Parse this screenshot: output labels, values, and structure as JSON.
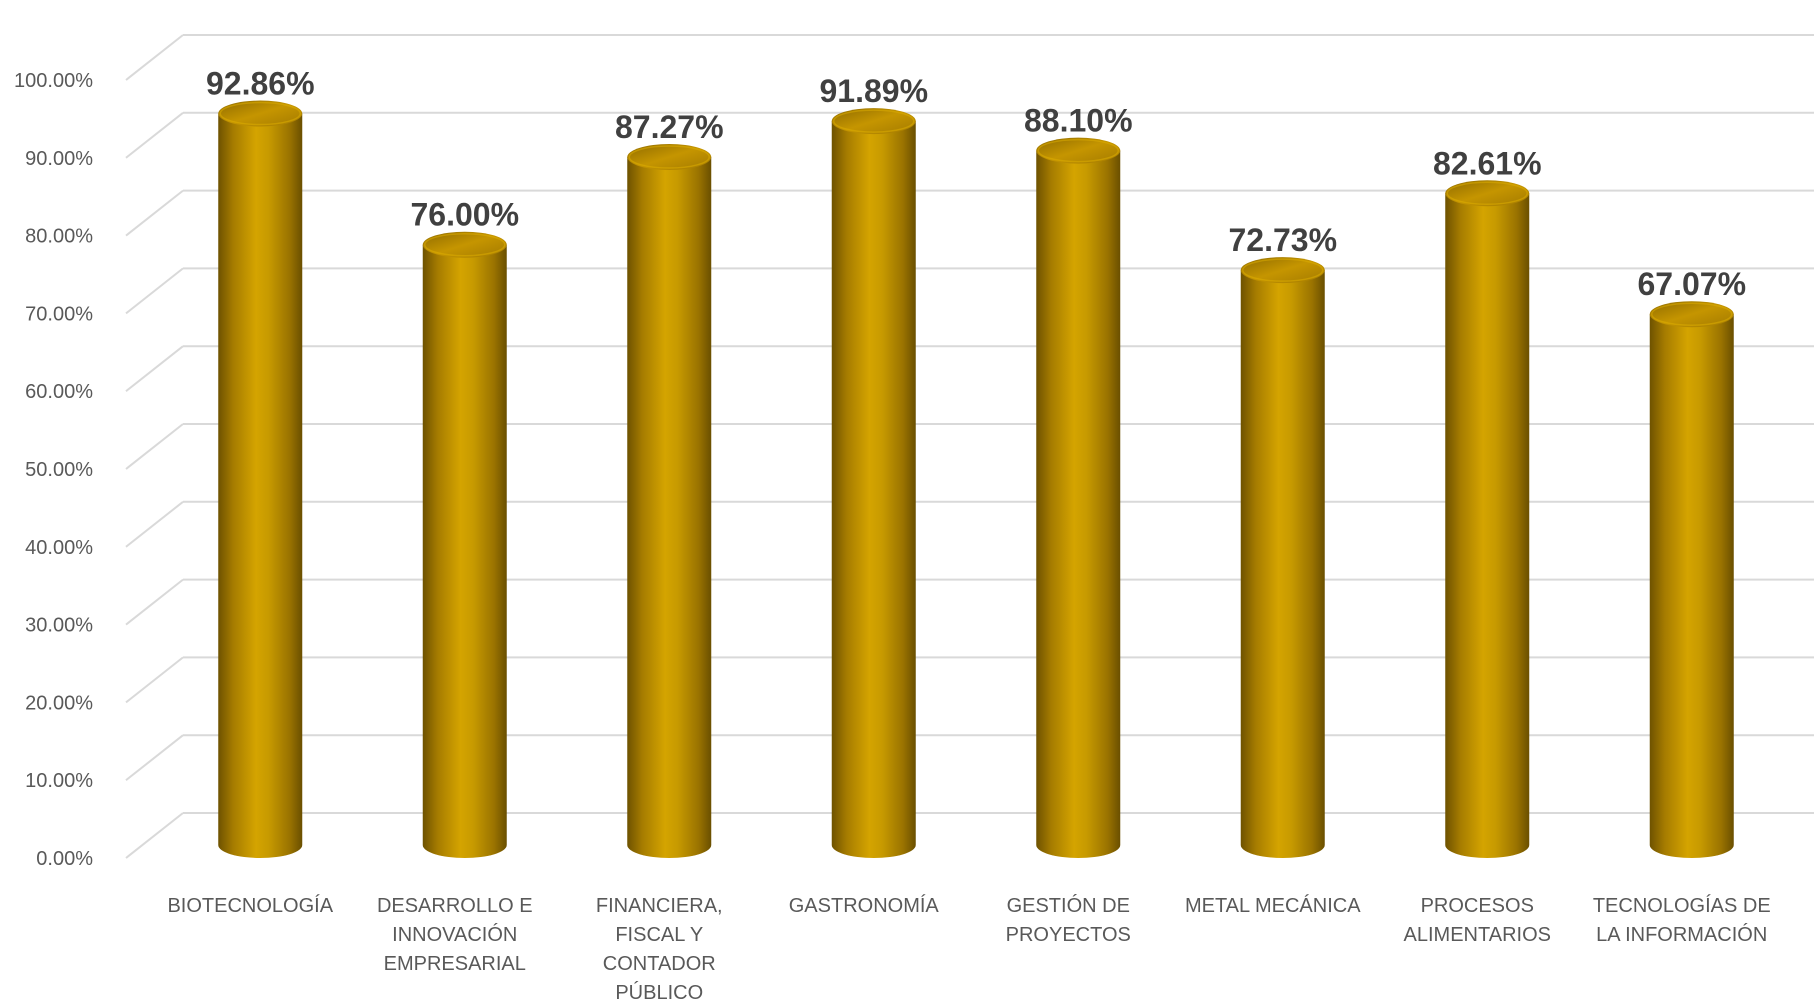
{
  "chart_data": {
    "type": "bar",
    "categories": [
      [
        "BIOTECNOLOGÍA"
      ],
      [
        "DESARROLLO E",
        "INNOVACIÓN",
        "EMPRESARIAL"
      ],
      [
        "FINANCIERA,",
        "FISCAL Y",
        "CONTADOR",
        "PÚBLICO"
      ],
      [
        "GASTRONOMÍA"
      ],
      [
        "GESTIÓN DE",
        "PROYECTOS"
      ],
      [
        "METAL MECÁNICA"
      ],
      [
        "PROCESOS",
        "ALIMENTARIOS"
      ],
      [
        "TECNOLOGÍAS DE",
        "LA INFORMACIÓN"
      ]
    ],
    "values": [
      92.86,
      76.0,
      87.27,
      91.89,
      88.1,
      72.73,
      82.61,
      67.07
    ],
    "data_labels": [
      "92.86%",
      "76.00%",
      "87.27%",
      "91.89%",
      "88.10%",
      "72.73%",
      "82.61%",
      "67.07%"
    ],
    "y_ticks": [
      0,
      10,
      20,
      30,
      40,
      50,
      60,
      70,
      80,
      90,
      100
    ],
    "y_tick_labels": [
      "0.00%",
      "10.00%",
      "20.00%",
      "30.00%",
      "40.00%",
      "50.00%",
      "60.00%",
      "70.00%",
      "80.00%",
      "90.00%",
      "100.00%"
    ],
    "ylim": [
      0,
      100
    ],
    "grid": true,
    "style": "3d-cylinder",
    "colors": {
      "bar_dark": "#7a5e00",
      "bar_mid": "#c99700",
      "bar_light": "#e8b800",
      "bar_top": "#b58a00",
      "grid": "#d9d9d9",
      "text": "#595959",
      "label": "#404040"
    }
  }
}
